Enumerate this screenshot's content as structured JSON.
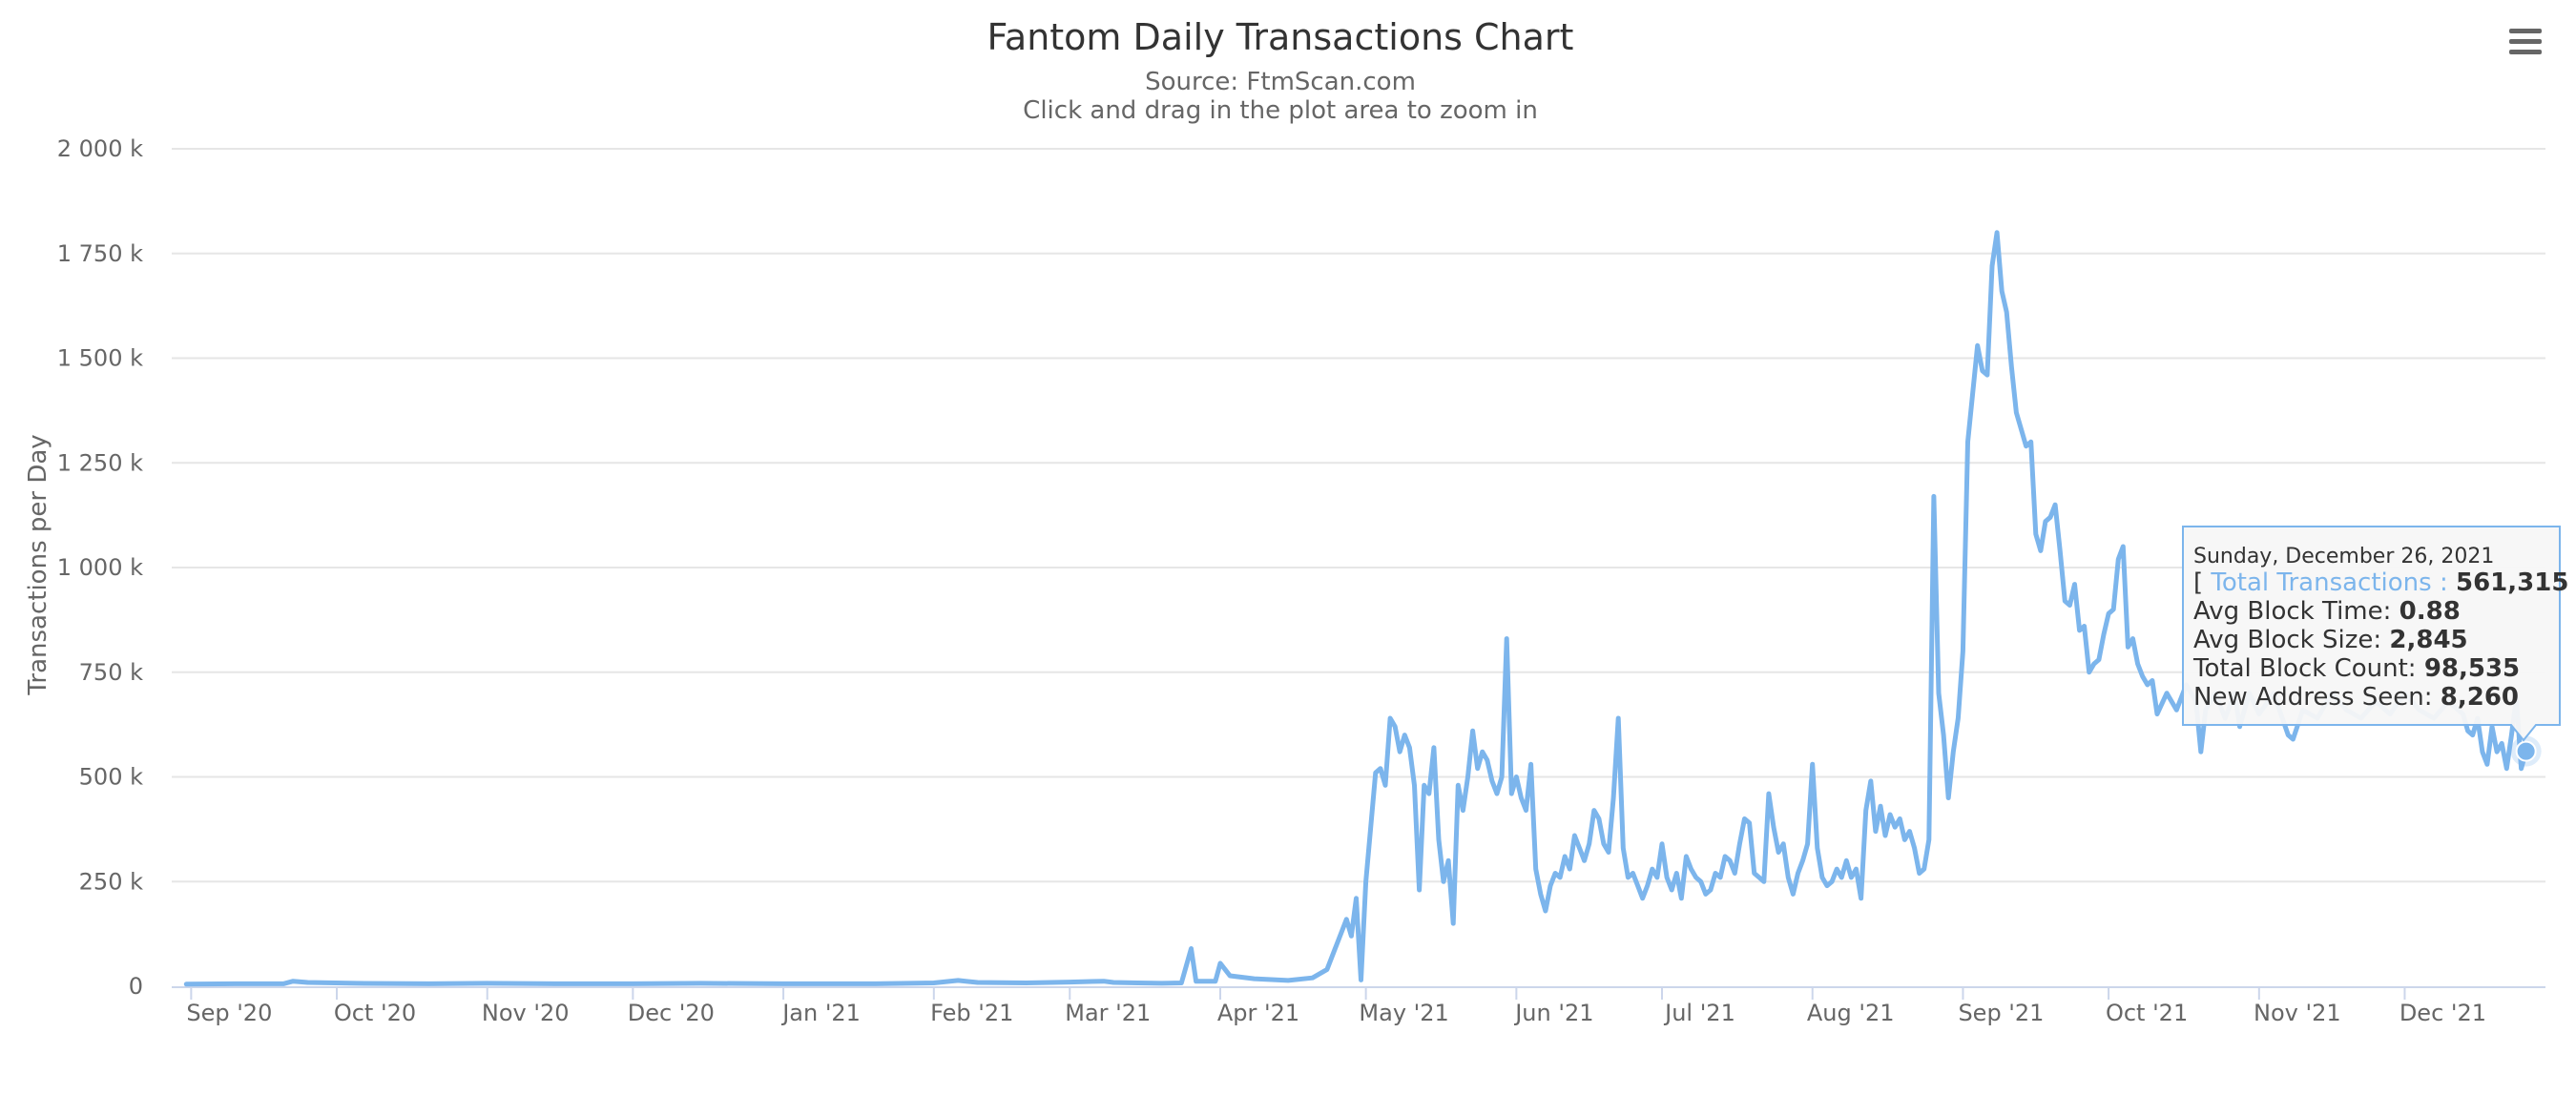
{
  "chart_title": "Fantom Daily Transactions Chart",
  "subtitle_source": "Source: FtmScan.com",
  "subtitle_hint": "Click and drag in the plot area to zoom in",
  "menu_icon": "hamburger-menu-icon",
  "colors": {
    "series": "#7cb5ec",
    "grid": "#e6e6e6",
    "axis": "#ccd6eb",
    "tooltip_border": "#7cb5ec",
    "tooltip_bg": "#f7f7f7"
  },
  "chart_data": {
    "type": "line",
    "title": "Fantom Daily Transactions Chart",
    "subtitle": "Source: FtmScan.com",
    "xlabel": "",
    "ylabel": "Transactions per Day",
    "xlim": [
      "2020-08-28",
      "2021-12-30"
    ],
    "ylim": [
      0,
      2000000
    ],
    "grid": true,
    "legend": "none",
    "y_ticks": [
      {
        "value": 0,
        "label": "0"
      },
      {
        "value": 250000,
        "label": "250 k"
      },
      {
        "value": 500000,
        "label": "500 k"
      },
      {
        "value": 750000,
        "label": "750 k"
      },
      {
        "value": 1000000,
        "label": "1 000 k"
      },
      {
        "value": 1250000,
        "label": "1 250 k"
      },
      {
        "value": 1500000,
        "label": "1 500 k"
      },
      {
        "value": 1750000,
        "label": "1 750 k"
      },
      {
        "value": 2000000,
        "label": "2 000 k"
      }
    ],
    "x_ticks": [
      {
        "date": "2020-09-01",
        "label": "Sep '20"
      },
      {
        "date": "2020-10-01",
        "label": "Oct '20"
      },
      {
        "date": "2020-11-01",
        "label": "Nov '20"
      },
      {
        "date": "2020-12-01",
        "label": "Dec '20"
      },
      {
        "date": "2021-01-01",
        "label": "Jan '21"
      },
      {
        "date": "2021-02-01",
        "label": "Feb '21"
      },
      {
        "date": "2021-03-01",
        "label": "Mar '21"
      },
      {
        "date": "2021-04-01",
        "label": "Apr '21"
      },
      {
        "date": "2021-05-01",
        "label": "May '21"
      },
      {
        "date": "2021-06-01",
        "label": "Jun '21"
      },
      {
        "date": "2021-07-01",
        "label": "Jul '21"
      },
      {
        "date": "2021-08-01",
        "label": "Aug '21"
      },
      {
        "date": "2021-09-01",
        "label": "Sep '21"
      },
      {
        "date": "2021-10-01",
        "label": "Oct '21"
      },
      {
        "date": "2021-11-01",
        "label": "Nov '21"
      },
      {
        "date": "2021-12-01",
        "label": "Dec '21"
      }
    ],
    "series": [
      {
        "points": [
          [
            "2020-08-31",
            5000
          ],
          [
            "2020-09-10",
            6000
          ],
          [
            "2020-09-20",
            6000
          ],
          [
            "2020-09-22",
            12000
          ],
          [
            "2020-09-25",
            9000
          ],
          [
            "2020-10-05",
            7000
          ],
          [
            "2020-10-20",
            6000
          ],
          [
            "2020-11-01",
            7000
          ],
          [
            "2020-11-15",
            6000
          ],
          [
            "2020-12-01",
            6000
          ],
          [
            "2020-12-15",
            7000
          ],
          [
            "2021-01-01",
            6000
          ],
          [
            "2021-01-20",
            6000
          ],
          [
            "2021-02-01",
            8000
          ],
          [
            "2021-02-06",
            14000
          ],
          [
            "2021-02-10",
            9000
          ],
          [
            "2021-02-20",
            8000
          ],
          [
            "2021-03-01",
            10000
          ],
          [
            "2021-03-08",
            12000
          ],
          [
            "2021-03-10",
            9000
          ],
          [
            "2021-03-15",
            8000
          ],
          [
            "2021-03-20",
            7000
          ],
          [
            "2021-03-24",
            8000
          ],
          [
            "2021-03-26",
            90000
          ],
          [
            "2021-03-27",
            12000
          ],
          [
            "2021-03-31",
            12000
          ],
          [
            "2021-04-01",
            55000
          ],
          [
            "2021-04-03",
            25000
          ],
          [
            "2021-04-08",
            18000
          ],
          [
            "2021-04-15",
            14000
          ],
          [
            "2021-04-20",
            20000
          ],
          [
            "2021-04-23",
            40000
          ],
          [
            "2021-04-25",
            100000
          ],
          [
            "2021-04-27",
            160000
          ],
          [
            "2021-04-28",
            120000
          ],
          [
            "2021-04-29",
            210000
          ],
          [
            "2021-04-30",
            15000
          ],
          [
            "2021-05-01",
            250000
          ],
          [
            "2021-05-03",
            510000
          ],
          [
            "2021-05-04",
            520000
          ],
          [
            "2021-05-05",
            480000
          ],
          [
            "2021-05-06",
            640000
          ],
          [
            "2021-05-07",
            620000
          ],
          [
            "2021-05-08",
            560000
          ],
          [
            "2021-05-09",
            600000
          ],
          [
            "2021-05-10",
            570000
          ],
          [
            "2021-05-11",
            480000
          ],
          [
            "2021-05-12",
            230000
          ],
          [
            "2021-05-13",
            480000
          ],
          [
            "2021-05-14",
            460000
          ],
          [
            "2021-05-15",
            570000
          ],
          [
            "2021-05-16",
            350000
          ],
          [
            "2021-05-17",
            250000
          ],
          [
            "2021-05-18",
            300000
          ],
          [
            "2021-05-19",
            150000
          ],
          [
            "2021-05-20",
            480000
          ],
          [
            "2021-05-21",
            420000
          ],
          [
            "2021-05-22",
            500000
          ],
          [
            "2021-05-23",
            610000
          ],
          [
            "2021-05-24",
            520000
          ],
          [
            "2021-05-25",
            560000
          ],
          [
            "2021-05-26",
            540000
          ],
          [
            "2021-05-27",
            490000
          ],
          [
            "2021-05-28",
            460000
          ],
          [
            "2021-05-29",
            500000
          ],
          [
            "2021-05-30",
            830000
          ],
          [
            "2021-05-31",
            460000
          ],
          [
            "2021-06-01",
            500000
          ],
          [
            "2021-06-02",
            450000
          ],
          [
            "2021-06-03",
            420000
          ],
          [
            "2021-06-04",
            530000
          ],
          [
            "2021-06-05",
            280000
          ],
          [
            "2021-06-06",
            220000
          ],
          [
            "2021-06-07",
            180000
          ],
          [
            "2021-06-08",
            240000
          ],
          [
            "2021-06-09",
            270000
          ],
          [
            "2021-06-10",
            260000
          ],
          [
            "2021-06-11",
            310000
          ],
          [
            "2021-06-12",
            280000
          ],
          [
            "2021-06-13",
            360000
          ],
          [
            "2021-06-14",
            330000
          ],
          [
            "2021-06-15",
            300000
          ],
          [
            "2021-06-16",
            340000
          ],
          [
            "2021-06-17",
            420000
          ],
          [
            "2021-06-18",
            400000
          ],
          [
            "2021-06-19",
            340000
          ],
          [
            "2021-06-20",
            320000
          ],
          [
            "2021-06-21",
            450000
          ],
          [
            "2021-06-22",
            640000
          ],
          [
            "2021-06-23",
            330000
          ],
          [
            "2021-06-24",
            260000
          ],
          [
            "2021-06-25",
            270000
          ],
          [
            "2021-06-26",
            240000
          ],
          [
            "2021-06-27",
            210000
          ],
          [
            "2021-06-28",
            240000
          ],
          [
            "2021-06-29",
            280000
          ],
          [
            "2021-06-30",
            260000
          ],
          [
            "2021-07-01",
            340000
          ],
          [
            "2021-07-02",
            260000
          ],
          [
            "2021-07-03",
            230000
          ],
          [
            "2021-07-04",
            270000
          ],
          [
            "2021-07-05",
            210000
          ],
          [
            "2021-07-06",
            310000
          ],
          [
            "2021-07-07",
            280000
          ],
          [
            "2021-07-08",
            260000
          ],
          [
            "2021-07-09",
            250000
          ],
          [
            "2021-07-10",
            220000
          ],
          [
            "2021-07-11",
            230000
          ],
          [
            "2021-07-12",
            270000
          ],
          [
            "2021-07-13",
            260000
          ],
          [
            "2021-07-14",
            310000
          ],
          [
            "2021-07-15",
            300000
          ],
          [
            "2021-07-16",
            270000
          ],
          [
            "2021-07-17",
            340000
          ],
          [
            "2021-07-18",
            400000
          ],
          [
            "2021-07-19",
            390000
          ],
          [
            "2021-07-20",
            270000
          ],
          [
            "2021-07-21",
            260000
          ],
          [
            "2021-07-22",
            250000
          ],
          [
            "2021-07-23",
            460000
          ],
          [
            "2021-07-24",
            380000
          ],
          [
            "2021-07-25",
            320000
          ],
          [
            "2021-07-26",
            340000
          ],
          [
            "2021-07-27",
            260000
          ],
          [
            "2021-07-28",
            220000
          ],
          [
            "2021-07-29",
            270000
          ],
          [
            "2021-07-30",
            300000
          ],
          [
            "2021-07-31",
            340000
          ],
          [
            "2021-08-01",
            530000
          ],
          [
            "2021-08-02",
            330000
          ],
          [
            "2021-08-03",
            260000
          ],
          [
            "2021-08-04",
            240000
          ],
          [
            "2021-08-05",
            250000
          ],
          [
            "2021-08-06",
            280000
          ],
          [
            "2021-08-07",
            260000
          ],
          [
            "2021-08-08",
            300000
          ],
          [
            "2021-08-09",
            260000
          ],
          [
            "2021-08-10",
            280000
          ],
          [
            "2021-08-11",
            210000
          ],
          [
            "2021-08-12",
            420000
          ],
          [
            "2021-08-13",
            490000
          ],
          [
            "2021-08-14",
            370000
          ],
          [
            "2021-08-15",
            430000
          ],
          [
            "2021-08-16",
            360000
          ],
          [
            "2021-08-17",
            410000
          ],
          [
            "2021-08-18",
            380000
          ],
          [
            "2021-08-19",
            400000
          ],
          [
            "2021-08-20",
            350000
          ],
          [
            "2021-08-21",
            370000
          ],
          [
            "2021-08-22",
            330000
          ],
          [
            "2021-08-23",
            270000
          ],
          [
            "2021-08-24",
            280000
          ],
          [
            "2021-08-25",
            350000
          ],
          [
            "2021-08-26",
            1170000
          ],
          [
            "2021-08-27",
            700000
          ],
          [
            "2021-08-28",
            600000
          ],
          [
            "2021-08-29",
            450000
          ],
          [
            "2021-08-30",
            560000
          ],
          [
            "2021-08-31",
            640000
          ],
          [
            "2021-09-01",
            800000
          ],
          [
            "2021-09-02",
            1300000
          ],
          [
            "2021-09-04",
            1530000
          ],
          [
            "2021-09-05",
            1470000
          ],
          [
            "2021-09-06",
            1460000
          ],
          [
            "2021-09-07",
            1720000
          ],
          [
            "2021-09-08",
            1800000
          ],
          [
            "2021-09-09",
            1660000
          ],
          [
            "2021-09-10",
            1610000
          ],
          [
            "2021-09-11",
            1480000
          ],
          [
            "2021-09-12",
            1370000
          ],
          [
            "2021-09-13",
            1330000
          ],
          [
            "2021-09-14",
            1290000
          ],
          [
            "2021-09-15",
            1300000
          ],
          [
            "2021-09-16",
            1080000
          ],
          [
            "2021-09-17",
            1040000
          ],
          [
            "2021-09-18",
            1110000
          ],
          [
            "2021-09-19",
            1120000
          ],
          [
            "2021-09-20",
            1150000
          ],
          [
            "2021-09-21",
            1040000
          ],
          [
            "2021-09-22",
            920000
          ],
          [
            "2021-09-23",
            910000
          ],
          [
            "2021-09-24",
            960000
          ],
          [
            "2021-09-25",
            850000
          ],
          [
            "2021-09-26",
            860000
          ],
          [
            "2021-09-27",
            750000
          ],
          [
            "2021-09-28",
            770000
          ],
          [
            "2021-09-29",
            780000
          ],
          [
            "2021-09-30",
            840000
          ],
          [
            "2021-10-01",
            890000
          ],
          [
            "2021-10-02",
            900000
          ],
          [
            "2021-10-03",
            1020000
          ],
          [
            "2021-10-04",
            1050000
          ],
          [
            "2021-10-05",
            810000
          ],
          [
            "2021-10-06",
            830000
          ],
          [
            "2021-10-07",
            770000
          ],
          [
            "2021-10-08",
            740000
          ],
          [
            "2021-10-09",
            720000
          ],
          [
            "2021-10-10",
            730000
          ],
          [
            "2021-10-11",
            650000
          ],
          [
            "2021-10-13",
            700000
          ],
          [
            "2021-10-15",
            660000
          ],
          [
            "2021-10-17",
            720000
          ],
          [
            "2021-10-19",
            680000
          ],
          [
            "2021-10-20",
            560000
          ],
          [
            "2021-10-21",
            660000
          ],
          [
            "2021-10-23",
            700000
          ],
          [
            "2021-10-25",
            640000
          ],
          [
            "2021-10-27",
            700000
          ],
          [
            "2021-10-28",
            620000
          ],
          [
            "2021-10-30",
            700000
          ],
          [
            "2021-11-01",
            650000
          ],
          [
            "2021-11-04",
            700000
          ],
          [
            "2021-11-07",
            600000
          ],
          [
            "2021-11-08",
            590000
          ],
          [
            "2021-11-10",
            660000
          ],
          [
            "2021-11-13",
            640000
          ],
          [
            "2021-11-16",
            700000
          ],
          [
            "2021-11-19",
            660000
          ],
          [
            "2021-11-22",
            640000
          ],
          [
            "2021-11-25",
            680000
          ],
          [
            "2021-11-28",
            650000
          ],
          [
            "2021-12-01",
            700000
          ],
          [
            "2021-12-04",
            660000
          ],
          [
            "2021-12-07",
            640000
          ],
          [
            "2021-12-10",
            680000
          ],
          [
            "2021-12-13",
            650000
          ],
          [
            "2021-12-14",
            610000
          ],
          [
            "2021-12-15",
            600000
          ],
          [
            "2021-12-16",
            640000
          ],
          [
            "2021-12-17",
            560000
          ],
          [
            "2021-12-18",
            530000
          ],
          [
            "2021-12-19",
            620000
          ],
          [
            "2021-12-20",
            560000
          ],
          [
            "2021-12-21",
            580000
          ],
          [
            "2021-12-22",
            520000
          ],
          [
            "2021-12-23",
            600000
          ],
          [
            "2021-12-24",
            690000
          ],
          [
            "2021-12-25",
            520000
          ],
          [
            "2021-12-26",
            561315
          ]
        ]
      }
    ],
    "highlight": {
      "date": "2021-12-26",
      "value": 561315
    }
  },
  "tooltip": {
    "date": "Sunday, December 26, 2021",
    "open_bracket": "[ ",
    "series_label": "Total Transactions : ",
    "series_value": "561,315",
    "close_bracket": " ]",
    "rows": [
      {
        "label": "Avg Block Time: ",
        "value": "0.88"
      },
      {
        "label": "Avg Block Size: ",
        "value": "2,845"
      },
      {
        "label": "Total Block Count: ",
        "value": "98,535"
      },
      {
        "label": "New Address Seen: ",
        "value": "8,260"
      }
    ]
  }
}
